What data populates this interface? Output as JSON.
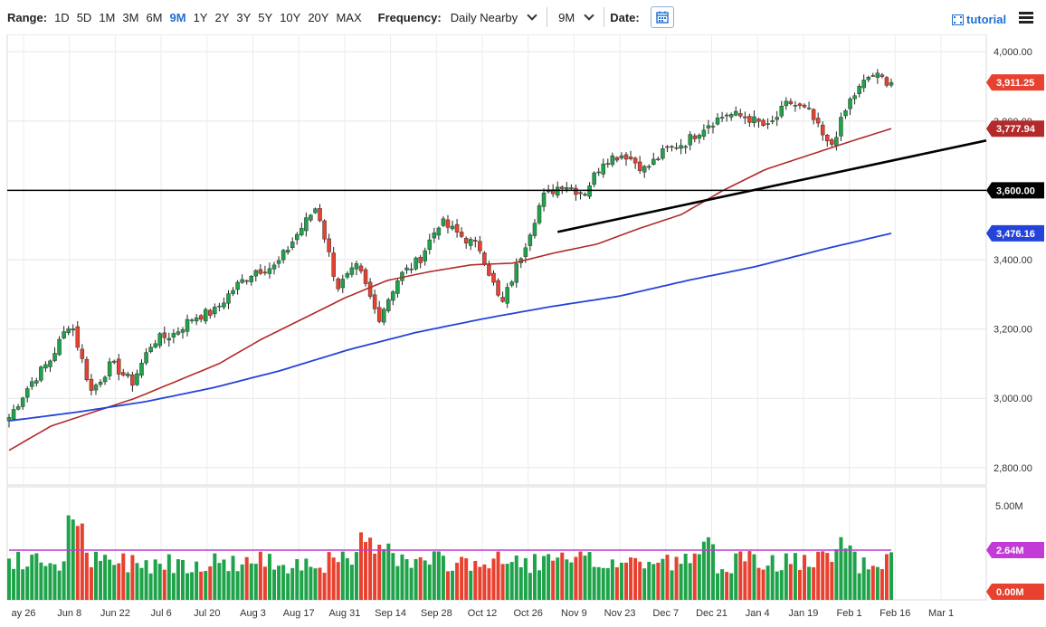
{
  "toolbar": {
    "range_label": "Range:",
    "ranges": [
      "1D",
      "5D",
      "1M",
      "3M",
      "6M",
      "9M",
      "1Y",
      "2Y",
      "3Y",
      "5Y",
      "10Y",
      "20Y",
      "MAX"
    ],
    "active_range": "9M",
    "frequency_label": "Frequency:",
    "frequency_value": "Daily Nearby",
    "period_value": "9M",
    "date_label": "Date:",
    "tutorial_label": "tutorial",
    "icons": [
      "calendar-icon",
      "film-icon",
      "menu-icon",
      "chevron-down-icon"
    ],
    "accent_color": "#1f6fd1"
  },
  "chart_data": {
    "type": "candlestick",
    "price_axis": {
      "min": 2750,
      "max": 4050,
      "ticks": [
        2800,
        3000,
        3200,
        3400,
        3600,
        3800,
        4000
      ],
      "tick_labels": [
        "2,800.00",
        "3,000.00",
        "3,200.00",
        "3,400.00",
        "3,600.00",
        "3,800.00",
        "4,000.00"
      ]
    },
    "x_axis": {
      "labels": [
        "ay 26",
        "Jun 8",
        "Jun 22",
        "Jul 6",
        "Jul 20",
        "Aug 3",
        "Aug 17",
        "Aug 31",
        "Sep 14",
        "Sep 28",
        "Oct 12",
        "Oct 26",
        "Nov 9",
        "Nov 23",
        "Dec 7",
        "Dec 21",
        "Jan 4",
        "Jan 19",
        "Feb 1",
        "Feb 16",
        "Mar 1"
      ]
    },
    "close_anchors": [
      2945,
      3040,
      3110,
      3225,
      3020,
      3100,
      3045,
      3165,
      3185,
      3235,
      3250,
      3320,
      3370,
      3380,
      3470,
      3555,
      3320,
      3380,
      3230,
      3350,
      3400,
      3510,
      3470,
      3430,
      3265,
      3420,
      3580,
      3620,
      3590,
      3690,
      3705,
      3660,
      3715,
      3740,
      3790,
      3820,
      3810,
      3780,
      3855,
      3825,
      3720,
      3860,
      3935,
      3911
    ],
    "price_labels": [
      {
        "value": 3911.25,
        "text": "3,911.25",
        "color": "#e8412f"
      },
      {
        "value": 3777.94,
        "text": "3,777.94",
        "color": "#b32a2a"
      },
      {
        "value": 3600.0,
        "text": "3,600.00",
        "color": "#000000"
      },
      {
        "value": 3476.16,
        "text": "3,476.16",
        "color": "#2444d8"
      }
    ],
    "ma_red_anchors": [
      2850,
      2920,
      2960,
      3000,
      3050,
      3100,
      3170,
      3230,
      3290,
      3340,
      3365,
      3385,
      3390,
      3420,
      3445,
      3490,
      3530,
      3600,
      3660,
      3700,
      3740,
      3778
    ],
    "ma_blue_anchors": [
      2935,
      2960,
      2990,
      3030,
      3080,
      3140,
      3190,
      3230,
      3265,
      3295,
      3340,
      3380,
      3430,
      3476
    ],
    "horizontal_line": {
      "value": 3600,
      "color": "#000000"
    },
    "trend_line": {
      "from_bar": 120,
      "from_value": 3480,
      "to_bar": 216,
      "to_value": 3750,
      "color": "#000000"
    },
    "volume_axis": {
      "min": 0,
      "max": 6000000,
      "tick_labels": [
        "5.00M",
        "2.64M",
        "0.00M"
      ],
      "tick_values": [
        5000000,
        2640000,
        0
      ]
    },
    "volume_avg": 2640000,
    "bars_count": 194,
    "colors": {
      "up": "#1fa34a",
      "down": "#e8412f",
      "ma_red": "#b32a2a",
      "ma_blue": "#2444d8",
      "volume_avg": "#c23bd6"
    }
  }
}
